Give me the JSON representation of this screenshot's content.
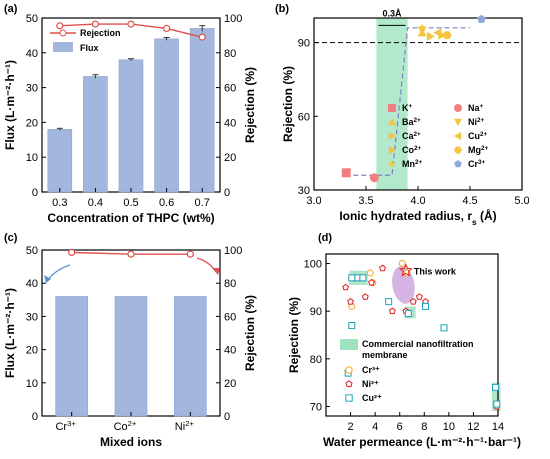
{
  "panel_letters": [
    "(a)",
    "(b)",
    "(c)",
    "(d)"
  ],
  "colors": {
    "bar": "#a3b6dd",
    "rejection": "#e0514f",
    "green_band": "#9fe2bf",
    "purple_ellipse": "#c79ad9",
    "dashed": "#7f7fbf",
    "cr": "#f5a623",
    "ni": "#e31a1c",
    "cu": "#1fa1b8"
  },
  "chart_data": [
    {
      "panel": "(a)",
      "type": "bar",
      "categories": [
        "0.3",
        "0.4",
        "0.5",
        "0.6",
        "0.7"
      ],
      "series": [
        {
          "name": "Flux",
          "type": "bar",
          "axis": "left",
          "values": [
            18,
            33.2,
            38,
            44,
            47
          ],
          "errors": [
            0.3,
            0.5,
            0.3,
            0.4,
            0.8
          ]
        },
        {
          "name": "Rejection",
          "type": "line",
          "axis": "right",
          "values": [
            95.5,
            96.5,
            96.5,
            94,
            89
          ]
        }
      ],
      "xlabel": "Concentration of THPC (wt%)",
      "ylabel_left": "Flux (L·m⁻²·h⁻¹)",
      "ylabel_right": "Rejection (%)",
      "yticks_left": [
        "0",
        "10",
        "20",
        "30",
        "40",
        "50"
      ],
      "yticks_right": [
        "0",
        "20",
        "40",
        "60",
        "80",
        "100"
      ],
      "ylim_left": [
        0,
        50
      ],
      "ylim_right": [
        0,
        100
      ],
      "legend": [
        "Rejection",
        "Flux"
      ],
      "legend_position": "top-left"
    },
    {
      "panel": "(b)",
      "type": "scatter",
      "xlabel": "Ionic hydrated radius, r",
      "xlabel_subscript": "s",
      "xlabel_unit": " (Å)",
      "ylabel": "Rejection (%)",
      "xlim": [
        3.0,
        5.0
      ],
      "ylim": [
        30,
        100
      ],
      "xticks": [
        "3.0",
        "3.5",
        "4.0",
        "4.5",
        "5.0"
      ],
      "yticks": [
        "30",
        "60",
        "90"
      ],
      "reference_line": 90,
      "band": {
        "x": [
          3.6,
          3.9
        ],
        "label": "0.3Å"
      },
      "points": [
        {
          "ion": "K",
          "charge": "+",
          "x": 3.31,
          "y": 37,
          "marker": "square",
          "color": "#f08080"
        },
        {
          "ion": "Na",
          "charge": "+",
          "x": 3.58,
          "y": 35,
          "marker": "circle",
          "color": "#f08080"
        },
        {
          "ion": "Ba",
          "charge": "2+",
          "x": 4.04,
          "y": 94,
          "marker": "triangle-up",
          "color": "#f5c542"
        },
        {
          "ion": "Ni",
          "charge": "2+",
          "x": 4.04,
          "y": 95,
          "marker": "triangle-down",
          "color": "#f5c542"
        },
        {
          "ion": "Ca",
          "charge": "2+",
          "x": 4.12,
          "y": 92.5,
          "marker": "triangle-right",
          "color": "#f5c542"
        },
        {
          "ion": "Cu",
          "charge": "2+",
          "x": 4.19,
          "y": 94,
          "marker": "triangle-left",
          "color": "#f5c542"
        },
        {
          "ion": "Co",
          "charge": "2+",
          "x": 4.23,
          "y": 93,
          "marker": "triangle-right",
          "color": "#f5c542"
        },
        {
          "ion": "Mg",
          "charge": "2+",
          "x": 4.28,
          "y": 93,
          "marker": "hexagon",
          "color": "#f5c542"
        },
        {
          "ion": "Mn",
          "charge": "2+",
          "x": 4.04,
          "y": 96,
          "marker": "star",
          "color": "#f5c542"
        },
        {
          "ion": "Cr",
          "charge": "3+",
          "x": 4.61,
          "y": 99.5,
          "marker": "pentagon",
          "color": "#8fa8dc"
        }
      ],
      "legend_rows": [
        [
          "K",
          "+",
          "Na",
          "+"
        ],
        [
          "Ba",
          "2+",
          "Ni",
          "2+"
        ],
        [
          "Ca",
          "2+",
          "Cu",
          "2+"
        ],
        [
          "Co",
          "2+",
          "Mg",
          "2+"
        ],
        [
          "Mn",
          "2+",
          "Cr",
          "3+"
        ]
      ]
    },
    {
      "panel": "(c)",
      "type": "bar",
      "categories": [
        {
          "ion": "Cr",
          "charge": "3+"
        },
        {
          "ion": "Co",
          "charge": "2+"
        },
        {
          "ion": "Ni",
          "charge": "2+"
        }
      ],
      "series": [
        {
          "name": "Flux",
          "type": "bar",
          "axis": "left",
          "values": [
            36,
            36,
            36
          ]
        },
        {
          "name": "Rejection",
          "type": "line",
          "axis": "right",
          "values": [
            98.5,
            97.5,
            97.5
          ]
        }
      ],
      "xlabel": "Mixed ions",
      "ylabel_left": "Flux (L·m⁻²·h⁻¹)",
      "ylabel_right": "Rejection (%)",
      "yticks_left": [
        "0",
        "10",
        "20",
        "30",
        "40",
        "50"
      ],
      "yticks_right": [
        "0",
        "20",
        "40",
        "60",
        "80",
        "100"
      ],
      "ylim_left": [
        0,
        50
      ],
      "ylim_right": [
        0,
        100
      ]
    },
    {
      "panel": "(d)",
      "type": "scatter",
      "xlabel": "Water permeance (L·m⁻²·h⁻¹·bar⁻¹)",
      "ylabel": "Rejection (%)",
      "xlim": [
        0,
        14
      ],
      "ylim": [
        68,
        102
      ],
      "xticks": [
        "2",
        "4",
        "6",
        "8",
        "10",
        "12",
        "14"
      ],
      "yticks": [
        "70",
        "80",
        "90",
        "100"
      ],
      "this_work": {
        "label": "This work",
        "x": 6.5,
        "y": 98.5
      },
      "commercial_label": [
        "Commercial nanofiltration",
        "membrane"
      ],
      "legend": [
        "Cr³⁺",
        "Ni²⁺",
        "Cu²⁺"
      ],
      "series": [
        {
          "name": "Cr³⁺",
          "marker": "circle-open",
          "points": [
            [
              2.1,
              91
            ],
            [
              3.6,
              98
            ],
            [
              3.8,
              96
            ],
            [
              6.2,
              100
            ],
            [
              6.6,
              98
            ]
          ]
        },
        {
          "name": "Ni²⁺",
          "marker": "pentagon-open",
          "points": [
            [
              1.6,
              95
            ],
            [
              2.0,
              92
            ],
            [
              3.0,
              97
            ],
            [
              3.2,
              93
            ],
            [
              3.7,
              96
            ],
            [
              4.6,
              99
            ],
            [
              5.4,
              90
            ],
            [
              6.5,
              90
            ],
            [
              7.1,
              92
            ],
            [
              7.6,
              93
            ],
            [
              8.1,
              92
            ],
            [
              13.9,
              70
            ]
          ]
        },
        {
          "name": "Cu²⁺",
          "marker": "square-open",
          "points": [
            [
              2.1,
              97
            ],
            [
              2.6,
              97
            ],
            [
              3.0,
              97
            ],
            [
              2.1,
              87
            ],
            [
              1.8,
              77
            ],
            [
              5.1,
              92
            ],
            [
              6.7,
              89.5
            ],
            [
              8.1,
              91
            ],
            [
              9.6,
              86.5
            ],
            [
              13.8,
              74
            ],
            [
              13.9,
              70.5
            ]
          ]
        }
      ],
      "highlight_boxes": [
        [
          1.9,
          3.4,
          95.5,
          98.5
        ],
        [
          6.4,
          7.3,
          88.5,
          91
        ],
        [
          13.5,
          14.2,
          69,
          75
        ]
      ]
    }
  ]
}
